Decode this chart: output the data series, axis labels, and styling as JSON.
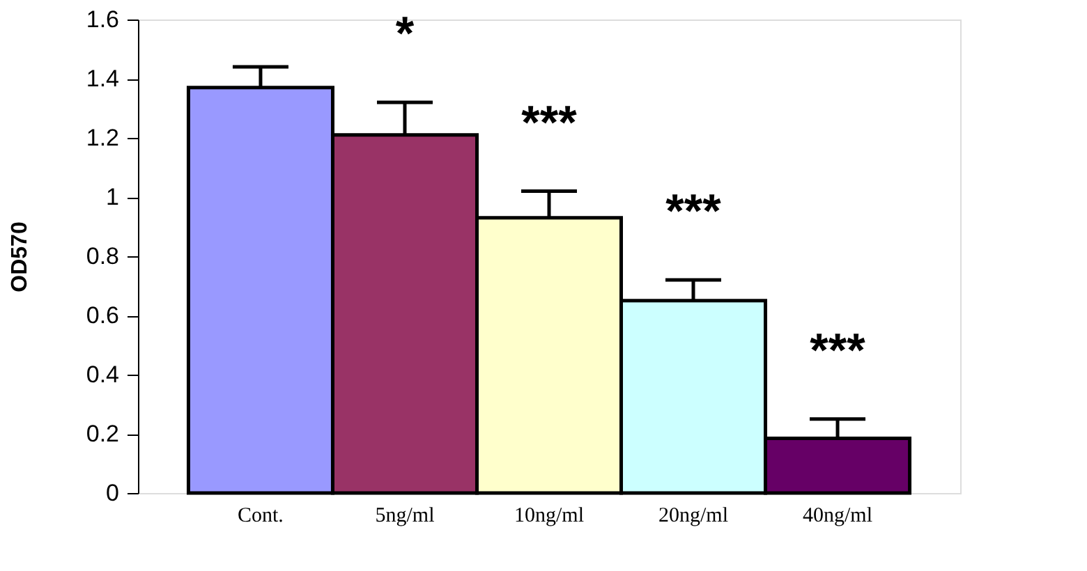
{
  "chart_data": {
    "type": "bar",
    "ylabel": "OD570",
    "categories": [
      "Cont.",
      "5ng/ml",
      "10ng/ml",
      "20ng/ml",
      "40ng/ml"
    ],
    "values": [
      1.37,
      1.21,
      0.93,
      0.65,
      0.185
    ],
    "colors": [
      "#9999ff",
      "#993366",
      "#ffffcc",
      "#ccffff",
      "#660066"
    ],
    "errors": [
      [
        1.37,
        1.44
      ],
      [
        1.21,
        1.32
      ],
      [
        0.93,
        1.02
      ],
      [
        0.65,
        0.72
      ],
      [
        0.185,
        0.25
      ]
    ],
    "ylim": [
      0,
      1.6
    ],
    "yticks": [
      0,
      0.2,
      0.4,
      0.6,
      0.8,
      1,
      1.2,
      1.4,
      1.6
    ],
    "grid": false,
    "legend": false,
    "annotations": [
      "*",
      "***",
      "***",
      "***"
    ]
  }
}
